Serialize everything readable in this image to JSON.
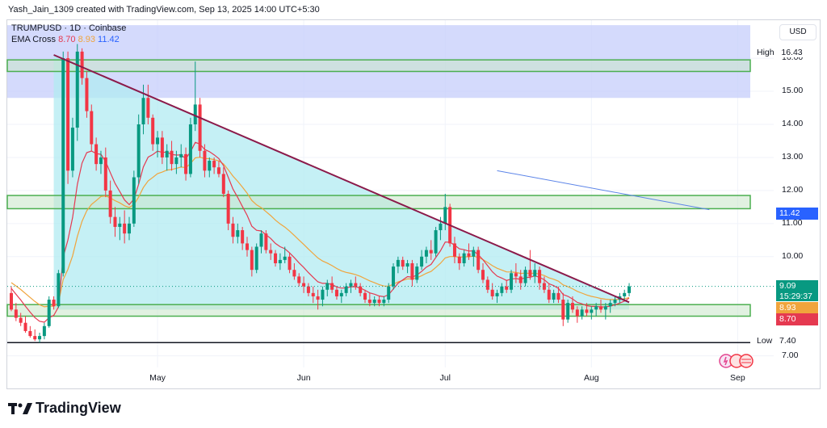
{
  "caption": "Yash_Jain_1309 created with TradingView.com, Sep 13, 2025 14:00 UTC+5:30",
  "legend": {
    "symbol_line": "TRUMPUSD · 1D · Coinbase",
    "ema_label": "EMA Cross",
    "ema_fast": "8.70",
    "ema_slow": "8.93",
    "ema_third": "11.42"
  },
  "currency": "USD",
  "brand": "TradingView",
  "colors": {
    "up": "#089981",
    "down": "#f23645",
    "ema_fast": "#e53950",
    "ema_slow": "#f0a43c",
    "triangle_fill": "#b2ebf2",
    "resistance_zone": "#c5cdfb",
    "zone_stroke": "#4caf50",
    "trendline": "#8b1a4a",
    "blue_line": "#5b84e8"
  },
  "high_label": {
    "label": "High",
    "value": "16.43"
  },
  "low_label": {
    "label": "Low",
    "value": "7.40"
  },
  "price_tags": {
    "current": {
      "value": "9.09",
      "countdown": "15:29:37",
      "color": "#089981"
    },
    "ema_slow": {
      "value": "8.93",
      "color": "#f0a43c"
    },
    "ema_fast": {
      "value": "8.70",
      "color": "#e53950"
    },
    "third": {
      "value": "11.42",
      "color": "#2962ff"
    }
  },
  "chart_data": {
    "type": "candlestick",
    "y_range": [
      6.65,
      17.15
    ],
    "y_ticks": [
      "16.00",
      "15.00",
      "14.00",
      "13.00",
      "12.00",
      "11.00",
      "10.00",
      "7.00"
    ],
    "x_ticks": [
      {
        "label": "May",
        "day": 31
      },
      {
        "label": "Jun",
        "day": 62
      },
      {
        "label": "Jul",
        "day": 92
      },
      {
        "label": "Aug",
        "day": 123
      },
      {
        "label": "Sep",
        "day": 154
      }
    ],
    "x_range_days": [
      0,
      164
    ],
    "candles": [
      [
        8.9,
        9.1,
        8.35,
        8.4
      ],
      [
        8.4,
        8.6,
        8.05,
        8.15
      ],
      [
        8.15,
        8.3,
        7.9,
        8.0
      ],
      [
        8.0,
        8.2,
        7.7,
        7.75
      ],
      [
        7.75,
        7.9,
        7.55,
        7.6
      ],
      [
        7.6,
        7.8,
        7.45,
        7.5
      ],
      [
        7.5,
        7.7,
        7.4,
        7.6
      ],
      [
        7.6,
        8.0,
        7.5,
        7.9
      ],
      [
        7.9,
        8.8,
        7.85,
        8.7
      ],
      [
        8.7,
        8.8,
        8.4,
        8.5
      ],
      [
        8.5,
        9.6,
        8.45,
        9.5
      ],
      [
        9.5,
        16.2,
        9.4,
        16.0
      ],
      [
        16.0,
        16.2,
        12.2,
        12.6
      ],
      [
        12.6,
        14.2,
        12.4,
        13.9
      ],
      [
        13.9,
        16.43,
        13.5,
        16.2
      ],
      [
        16.2,
        16.3,
        15.2,
        15.4
      ],
      [
        15.4,
        15.6,
        14.2,
        14.4
      ],
      [
        14.4,
        14.6,
        13.2,
        13.4
      ],
      [
        13.4,
        13.6,
        12.6,
        12.8
      ],
      [
        12.8,
        13.2,
        12.5,
        13.0
      ],
      [
        13.0,
        13.3,
        11.8,
        12.0
      ],
      [
        12.0,
        12.3,
        11.0,
        11.2
      ],
      [
        11.2,
        11.5,
        10.6,
        10.9
      ],
      [
        10.9,
        11.2,
        10.5,
        11.0
      ],
      [
        11.0,
        11.4,
        10.4,
        10.7
      ],
      [
        10.7,
        11.2,
        10.5,
        11.0
      ],
      [
        11.0,
        12.6,
        10.9,
        12.4
      ],
      [
        12.4,
        14.3,
        12.2,
        14.0
      ],
      [
        14.0,
        15.2,
        13.7,
        14.8
      ],
      [
        14.8,
        15.2,
        14.0,
        14.2
      ],
      [
        14.2,
        14.3,
        13.2,
        13.4
      ],
      [
        13.4,
        13.8,
        13.0,
        13.6
      ],
      [
        13.6,
        13.8,
        12.8,
        13.0
      ],
      [
        13.0,
        13.4,
        12.6,
        13.2
      ],
      [
        13.2,
        13.5,
        12.6,
        12.8
      ],
      [
        12.8,
        13.2,
        12.5,
        13.0
      ],
      [
        13.0,
        13.4,
        12.7,
        13.1
      ],
      [
        13.1,
        13.3,
        12.3,
        12.5
      ],
      [
        12.5,
        14.2,
        12.4,
        14.0
      ],
      [
        14.0,
        15.9,
        13.8,
        14.6
      ],
      [
        14.6,
        14.8,
        13.0,
        13.2
      ],
      [
        13.2,
        13.4,
        12.4,
        12.6
      ],
      [
        12.6,
        13.0,
        12.4,
        12.9
      ],
      [
        12.9,
        13.0,
        12.5,
        12.7
      ],
      [
        12.7,
        12.9,
        12.4,
        12.5
      ],
      [
        12.5,
        12.7,
        11.8,
        11.9
      ],
      [
        11.9,
        12.0,
        10.8,
        11.0
      ],
      [
        11.0,
        11.2,
        10.4,
        10.6
      ],
      [
        10.6,
        11.0,
        10.4,
        10.8
      ],
      [
        10.8,
        10.9,
        10.2,
        10.4
      ],
      [
        10.4,
        10.6,
        10.0,
        10.2
      ],
      [
        10.2,
        10.3,
        9.4,
        9.6
      ],
      [
        9.6,
        10.4,
        9.5,
        10.3
      ],
      [
        10.3,
        10.8,
        10.1,
        10.7
      ],
      [
        10.7,
        10.8,
        10.1,
        10.2
      ],
      [
        10.2,
        10.4,
        9.9,
        10.1
      ],
      [
        10.1,
        10.2,
        9.7,
        9.8
      ],
      [
        9.8,
        10.1,
        9.6,
        9.9
      ],
      [
        9.9,
        10.3,
        9.8,
        10.0
      ],
      [
        10.0,
        10.1,
        9.5,
        9.6
      ],
      [
        9.6,
        9.8,
        9.3,
        9.4
      ],
      [
        9.4,
        9.5,
        9.1,
        9.2
      ],
      [
        9.2,
        9.4,
        8.9,
        9.1
      ],
      [
        9.1,
        9.2,
        8.8,
        8.9
      ],
      [
        8.9,
        9.1,
        8.6,
        8.8
      ],
      [
        8.8,
        9.0,
        8.4,
        8.7
      ],
      [
        8.7,
        9.1,
        8.5,
        9.0
      ],
      [
        9.0,
        9.3,
        8.8,
        9.2
      ],
      [
        9.2,
        9.4,
        8.9,
        9.0
      ],
      [
        9.0,
        9.1,
        8.7,
        8.8
      ],
      [
        8.8,
        9.0,
        8.6,
        8.9
      ],
      [
        8.9,
        9.2,
        8.8,
        9.1
      ],
      [
        9.1,
        9.3,
        8.9,
        9.2
      ],
      [
        9.2,
        9.4,
        9.0,
        9.1
      ],
      [
        9.1,
        9.2,
        8.8,
        8.9
      ],
      [
        8.9,
        9.0,
        8.6,
        8.7
      ],
      [
        8.7,
        8.9,
        8.5,
        8.6
      ],
      [
        8.6,
        8.8,
        8.5,
        8.7
      ],
      [
        8.7,
        8.8,
        8.5,
        8.6
      ],
      [
        8.6,
        8.8,
        8.5,
        8.7
      ],
      [
        8.7,
        9.2,
        8.6,
        9.1
      ],
      [
        9.1,
        9.8,
        9.0,
        9.7
      ],
      [
        9.7,
        10.0,
        9.5,
        9.9
      ],
      [
        9.9,
        10.0,
        9.6,
        9.7
      ],
      [
        9.7,
        9.9,
        9.5,
        9.8
      ],
      [
        9.8,
        9.9,
        9.1,
        9.3
      ],
      [
        9.3,
        9.8,
        9.2,
        9.7
      ],
      [
        9.7,
        10.2,
        9.6,
        10.0
      ],
      [
        10.0,
        10.3,
        9.8,
        10.2
      ],
      [
        10.2,
        10.5,
        9.9,
        10.1
      ],
      [
        10.1,
        10.9,
        10.0,
        10.8
      ],
      [
        10.8,
        11.2,
        10.5,
        11.0
      ],
      [
        11.0,
        11.9,
        10.8,
        11.5
      ],
      [
        11.5,
        11.6,
        10.3,
        10.4
      ],
      [
        10.4,
        10.6,
        9.8,
        10.0
      ],
      [
        10.0,
        10.1,
        9.6,
        9.8
      ],
      [
        9.8,
        10.2,
        9.7,
        10.1
      ],
      [
        10.1,
        10.4,
        9.9,
        10.0
      ],
      [
        10.0,
        10.3,
        9.7,
        10.2
      ],
      [
        10.2,
        10.3,
        9.5,
        9.6
      ],
      [
        9.6,
        9.8,
        9.2,
        9.3
      ],
      [
        9.3,
        9.4,
        8.9,
        9.0
      ],
      [
        9.0,
        9.2,
        8.7,
        8.8
      ],
      [
        8.8,
        9.0,
        8.6,
        8.9
      ],
      [
        8.9,
        9.2,
        8.8,
        9.1
      ],
      [
        9.1,
        9.3,
        8.9,
        9.0
      ],
      [
        9.0,
        9.6,
        8.9,
        9.5
      ],
      [
        9.5,
        9.8,
        9.2,
        9.4
      ],
      [
        9.4,
        9.6,
        9.0,
        9.2
      ],
      [
        9.2,
        9.7,
        9.1,
        9.6
      ],
      [
        9.6,
        10.2,
        9.3,
        9.4
      ],
      [
        9.4,
        9.8,
        9.2,
        9.6
      ],
      [
        9.6,
        9.7,
        9.0,
        9.2
      ],
      [
        9.2,
        9.4,
        8.9,
        9.0
      ],
      [
        9.0,
        9.2,
        8.6,
        8.7
      ],
      [
        8.7,
        9.0,
        8.6,
        8.9
      ],
      [
        8.9,
        9.1,
        8.6,
        8.7
      ],
      [
        8.7,
        8.9,
        7.9,
        8.1
      ],
      [
        8.1,
        8.7,
        8.0,
        8.6
      ],
      [
        8.6,
        8.8,
        8.3,
        8.4
      ],
      [
        8.4,
        8.5,
        8.0,
        8.2
      ],
      [
        8.2,
        8.5,
        8.1,
        8.4
      ],
      [
        8.4,
        8.6,
        8.2,
        8.3
      ],
      [
        8.3,
        8.5,
        8.1,
        8.4
      ],
      [
        8.4,
        8.6,
        8.2,
        8.5
      ],
      [
        8.5,
        8.7,
        8.3,
        8.4
      ],
      [
        8.4,
        8.6,
        8.1,
        8.5
      ],
      [
        8.5,
        8.7,
        8.3,
        8.6
      ],
      [
        8.6,
        8.8,
        8.5,
        8.7
      ],
      [
        8.7,
        8.9,
        8.6,
        8.8
      ],
      [
        8.8,
        9.0,
        8.7,
        8.9
      ],
      [
        8.9,
        9.2,
        8.8,
        9.1
      ]
    ],
    "zones": [
      {
        "name": "upper-blue-band",
        "from": 14.8,
        "to": 17.0,
        "kind": "range"
      },
      {
        "name": "top-green-zone",
        "from": 15.6,
        "to": 15.95,
        "kind": "zone"
      },
      {
        "name": "mid-green-zone",
        "from": 11.45,
        "to": 11.85,
        "kind": "zone"
      },
      {
        "name": "bottom-green-zone",
        "from": 8.2,
        "to": 8.55,
        "kind": "zone"
      }
    ],
    "trendline": {
      "from": [
        9,
        16.1
      ],
      "to": [
        131,
        8.62
      ]
    },
    "blue_line": {
      "from": [
        103,
        12.6
      ],
      "to": [
        148,
        11.42
      ]
    },
    "low_line": 7.4,
    "triangle": [
      [
        9,
        16.1
      ],
      [
        131,
        8.62
      ],
      [
        131,
        8.4
      ],
      [
        9,
        8.4
      ]
    ]
  }
}
